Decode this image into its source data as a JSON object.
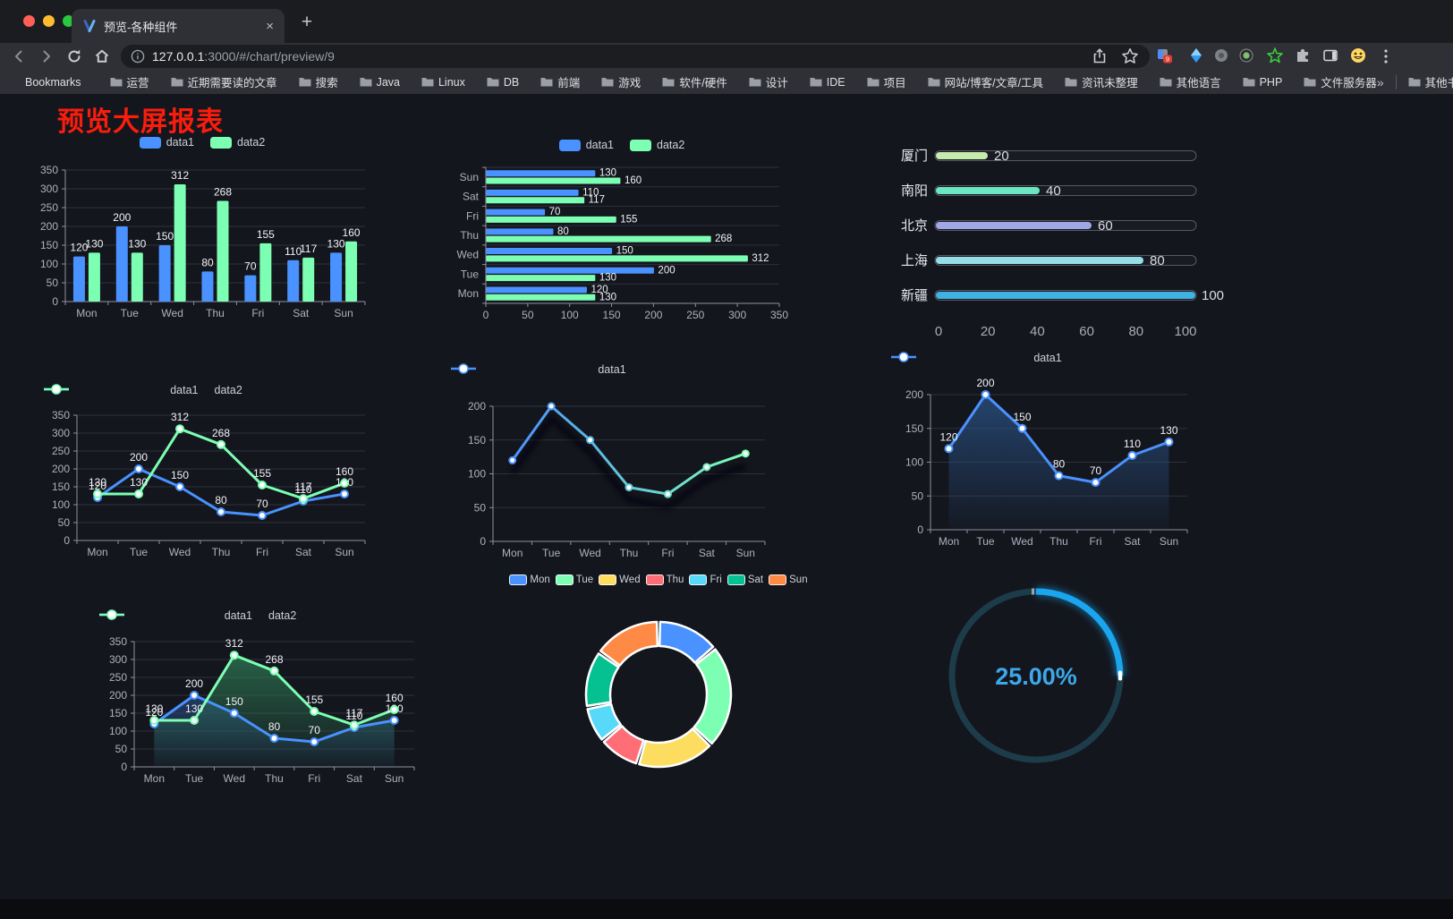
{
  "browser": {
    "tab": {
      "title": "预览-各种组件"
    },
    "new_tab_button": "+",
    "url": {
      "host": "127.0.0.1",
      "rest": ":3000/#/chart/preview/9"
    },
    "extensions_badge": "9",
    "bookmarks_bar": {
      "star_label": "Bookmarks",
      "folders": [
        "运营",
        "近期需要读的文章",
        "搜索",
        "Java",
        "Linux",
        "DB",
        "前端",
        "游戏",
        "软件/硬件",
        "设计",
        "IDE",
        "项目",
        "网站/博客/文章/工具",
        "资讯未整理",
        "其他语言",
        "PHP",
        "文件服务器"
      ],
      "overflow": "»",
      "other": "其他书签"
    }
  },
  "page": {
    "title": "预览大屏报表",
    "title_color": "#fb1d0c"
  },
  "chart_data": [
    {
      "id": "bar-grouped",
      "type": "bar",
      "legend_position": "top",
      "grid": true,
      "categories": [
        "Mon",
        "Tue",
        "Wed",
        "Thu",
        "Fri",
        "Sat",
        "Sun"
      ],
      "series": [
        {
          "name": "data1",
          "color": "#4992ff",
          "values": [
            120,
            200,
            150,
            80,
            70,
            110,
            130
          ]
        },
        {
          "name": "data2",
          "color": "#7cffb2",
          "values": [
            130,
            130,
            312,
            268,
            155,
            117,
            160
          ]
        }
      ],
      "ylim": [
        0,
        350
      ],
      "ytick_step": 50,
      "value_labels": true
    },
    {
      "id": "bar-horizontal",
      "type": "bar-horizontal",
      "legend_position": "top",
      "categories": [
        "Mon",
        "Tue",
        "Wed",
        "Thu",
        "Fri",
        "Sat",
        "Sun"
      ],
      "category_axis": "reversed-top-is-Sun",
      "series": [
        {
          "name": "data1",
          "color": "#4992ff",
          "values": [
            120,
            200,
            150,
            80,
            70,
            110,
            130
          ]
        },
        {
          "name": "data2",
          "color": "#7cffb2",
          "values": [
            130,
            130,
            312,
            268,
            155,
            117,
            160
          ]
        }
      ],
      "xlim": [
        0,
        350
      ],
      "xtick_step": 50,
      "value_labels": true
    },
    {
      "id": "city-progress",
      "type": "progress-bars",
      "xlim": [
        0,
        100
      ],
      "xticks": [
        0,
        20,
        40,
        60,
        80,
        100
      ],
      "rows": [
        {
          "label": "厦门",
          "value": 20,
          "color": "#c4ebad"
        },
        {
          "label": "南阳",
          "value": 40,
          "color": "#6be6c1"
        },
        {
          "label": "北京",
          "value": 60,
          "color": "#a0a7e6"
        },
        {
          "label": "上海",
          "value": 80,
          "color": "#96dee8"
        },
        {
          "label": "新疆",
          "value": 100,
          "color": "#3fb1e3"
        }
      ]
    },
    {
      "id": "line-grouped",
      "type": "line",
      "legend_position": "top",
      "categories": [
        "Mon",
        "Tue",
        "Wed",
        "Thu",
        "Fri",
        "Sat",
        "Sun"
      ],
      "series": [
        {
          "name": "data1",
          "color": "#4992ff",
          "values": [
            120,
            200,
            150,
            80,
            70,
            110,
            130
          ]
        },
        {
          "name": "data2",
          "color": "#7cffb2",
          "values": [
            130,
            130,
            312,
            268,
            155,
            117,
            160
          ]
        }
      ],
      "ylim": [
        0,
        350
      ],
      "ytick_step": 50,
      "value_labels": true
    },
    {
      "id": "line-gradient",
      "type": "line",
      "legend_position": "top",
      "shadow": true,
      "marker_r": 3.5,
      "categories": [
        "Mon",
        "Tue",
        "Wed",
        "Thu",
        "Fri",
        "Sat",
        "Sun"
      ],
      "series": [
        {
          "name": "data1",
          "color_gradient": [
            "#4992ff",
            "#7cffb2"
          ],
          "values": [
            120,
            200,
            150,
            80,
            70,
            110,
            130
          ]
        }
      ],
      "ylim": [
        0,
        200
      ],
      "ytick_step": 50,
      "value_labels": false
    },
    {
      "id": "area-single",
      "type": "line",
      "legend_position": "top",
      "categories": [
        "Mon",
        "Tue",
        "Wed",
        "Thu",
        "Fri",
        "Sat",
        "Sun"
      ],
      "series": [
        {
          "name": "data1",
          "color": "#4992ff",
          "area": true,
          "area_fill": "#2a5488",
          "values": [
            120,
            200,
            150,
            80,
            70,
            110,
            130
          ]
        }
      ],
      "ylim": [
        0,
        200
      ],
      "ytick_step": 50,
      "value_labels": true
    },
    {
      "id": "area-grouped",
      "type": "line",
      "legend_position": "top",
      "categories": [
        "Mon",
        "Tue",
        "Wed",
        "Thu",
        "Fri",
        "Sat",
        "Sun"
      ],
      "series": [
        {
          "name": "data1",
          "color": "#4992ff",
          "area": true,
          "area_fill": "#27477a",
          "values": [
            120,
            200,
            150,
            80,
            70,
            110,
            130
          ]
        },
        {
          "name": "data2",
          "color": "#7cffb2",
          "area": true,
          "area_fill": "#2e7a55",
          "values": [
            130,
            130,
            312,
            268,
            155,
            117,
            160
          ]
        }
      ],
      "ylim": [
        0,
        350
      ],
      "ytick_step": 50,
      "value_labels": true
    },
    {
      "id": "donut",
      "type": "pie",
      "legend_position": "top",
      "inner_radius_pct": 66,
      "slices": [
        {
          "label": "Mon",
          "value": 120,
          "color": "#4992ff"
        },
        {
          "label": "Tue",
          "value": 200,
          "color": "#7cffb2"
        },
        {
          "label": "Wed",
          "value": 150,
          "color": "#fddd60"
        },
        {
          "label": "Thu",
          "value": 80,
          "color": "#ff6e76"
        },
        {
          "label": "Fri",
          "value": 70,
          "color": "#58d9f9"
        },
        {
          "label": "Sat",
          "value": 110,
          "color": "#05c091"
        },
        {
          "label": "Sun",
          "value": 130,
          "color": "#ff8a45"
        }
      ]
    },
    {
      "id": "gauge",
      "type": "gauge",
      "value": 25,
      "display": "25.00%",
      "color": "#19a6ef",
      "track_color": "#1d3c49"
    }
  ]
}
